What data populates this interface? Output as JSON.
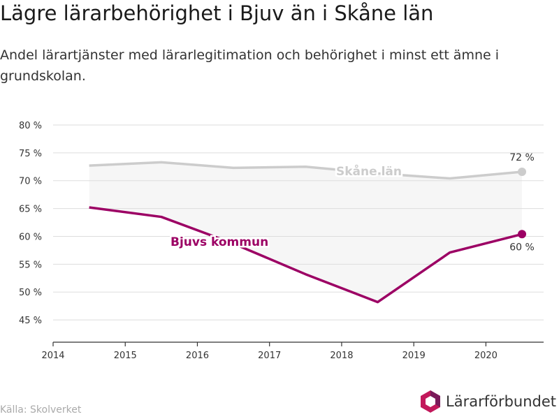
{
  "title": "Lägre lärarbehörighet i Bjuv än i Skåne län",
  "subtitle": "Andel lärartjänster med lärarlegitimation och behörighet i minst ett ämne i grundskolan.",
  "source": "Källa: Skolverket",
  "brand": "Lärarförbundet",
  "colors": {
    "bjuv": "#9c0064",
    "skane": "#cccccc",
    "band": "#f6f6f6",
    "grid": "#dddddd",
    "logo_primary": "#c2185b",
    "logo_secondary": "#7a1a5a"
  },
  "chart_data": {
    "type": "line",
    "x_ticks": [
      "2014",
      "2015",
      "2016",
      "2017",
      "2018",
      "2019",
      "2020"
    ],
    "y_ticks": [
      "80 %",
      "75 %",
      "70 %",
      "65 %",
      "60 %",
      "55 %",
      "50 %",
      "45 %"
    ],
    "xlim": [
      2014,
      2020.8
    ],
    "ylim": [
      41,
      82
    ],
    "grid": true,
    "shaded_area_between_series": true,
    "series": [
      {
        "name": "Skåne län",
        "x": [
          2014.5,
          2015.5,
          2016.5,
          2017.5,
          2018.5,
          2019.5,
          2020.5
        ],
        "values": [
          72.7,
          73.3,
          72.3,
          72.5,
          71.3,
          70.4,
          71.6
        ],
        "end_label": "72 %"
      },
      {
        "name": "Bjuvs kommun",
        "x": [
          2014.5,
          2015.5,
          2016.5,
          2017.5,
          2018.5,
          2019.5,
          2020.5
        ],
        "values": [
          65.2,
          63.5,
          58.7,
          53.2,
          48.2,
          57.1,
          60.4
        ],
        "end_label": "60 %"
      }
    ]
  }
}
